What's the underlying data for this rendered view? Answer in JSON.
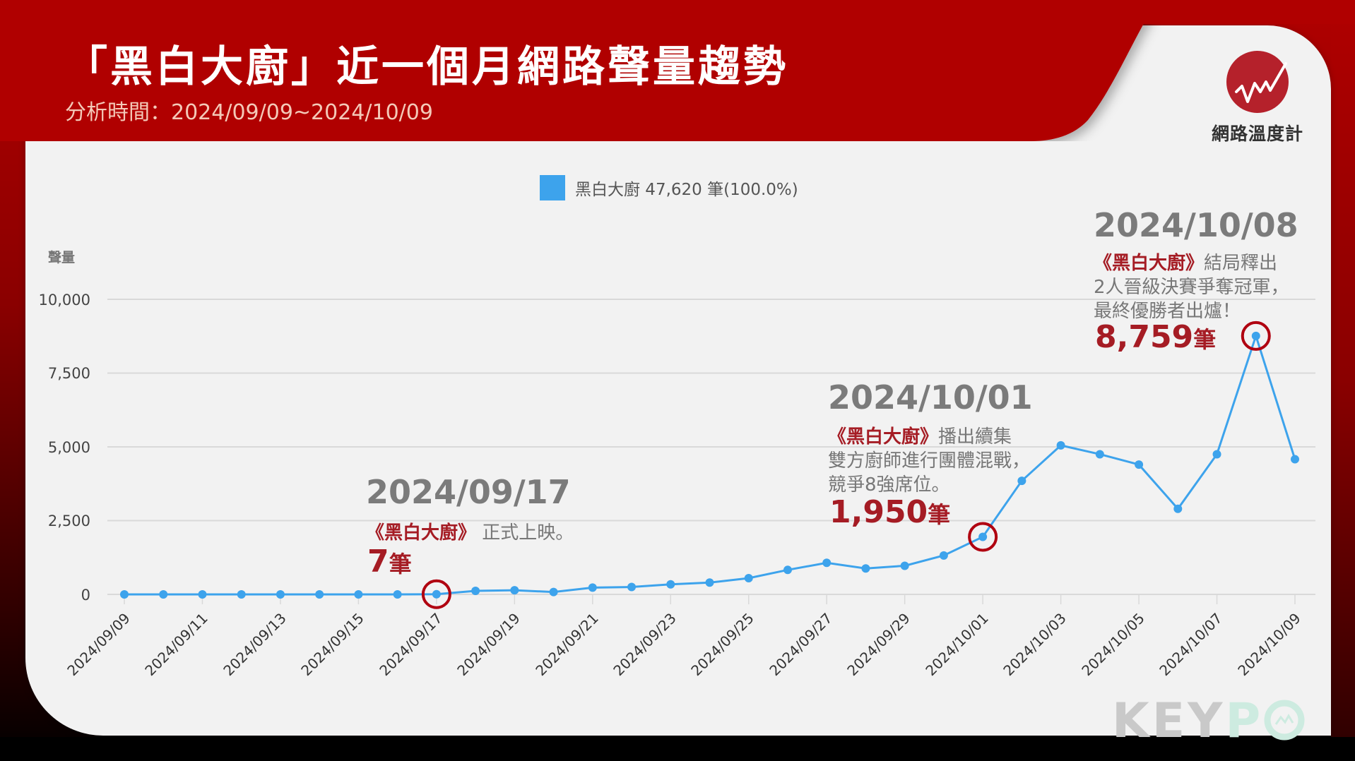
{
  "header": {
    "title": "「黑白大廚」近一個月網路聲量趨勢",
    "subtitle": "分析時間：2024/09/09~2024/10/09"
  },
  "brand": {
    "logo_icon": "trend-line-icon",
    "logo_text": "網路溫度計",
    "watermark_left": "KEY",
    "watermark_right": "P",
    "watermark_icon": "keypo-o-icon"
  },
  "legend": {
    "label": "黑白大廚 47,620 筆(100.0%)",
    "color": "#3da3ec"
  },
  "annotations": [
    {
      "date": "2024/09/17",
      "title": "《黑白大廚》",
      "lines": [
        "正式上映。"
      ],
      "count": "7",
      "unit": "筆"
    },
    {
      "date": "2024/10/01",
      "title": "《黑白大廚》",
      "lines": [
        "播出續集",
        "雙方廚師進行團體混戰，",
        "競爭8強席位。"
      ],
      "count": "1,950",
      "unit": "筆"
    },
    {
      "date": "2024/10/08",
      "title": "《黑白大廚》",
      "lines": [
        "結局釋出",
        "2人晉級決賽爭奪冠軍，",
        "最終優勝者出爐！"
      ],
      "count": "8,759",
      "unit": "筆"
    }
  ],
  "colors": {
    "header_red": "#b00000",
    "accent_red": "#a51c24",
    "line_blue": "#3da3ec",
    "highlight_circle": "#b00010"
  },
  "chart_data": {
    "type": "line",
    "title": "「黑白大廚」近一個月網路聲量趨勢",
    "subtitle": "分析時間：2024/09/09~2024/10/09",
    "xlabel": "",
    "ylabel": "聲量",
    "ylim": [
      0,
      10000
    ],
    "yticks": [
      0,
      2500,
      5000,
      7500,
      10000
    ],
    "ytick_labels": [
      "0",
      "2,500",
      "5,000",
      "7,500",
      "10,000"
    ],
    "grid": true,
    "legend_position": "top",
    "xtick_labels": [
      "2024/09/09",
      "2024/09/11",
      "2024/09/13",
      "2024/09/15",
      "2024/09/17",
      "2024/09/19",
      "2024/09/21",
      "2024/09/23",
      "2024/09/25",
      "2024/09/27",
      "2024/09/29",
      "2024/10/01",
      "2024/10/03",
      "2024/10/05",
      "2024/10/07",
      "2024/10/09"
    ],
    "x": [
      "2024/09/09",
      "2024/09/10",
      "2024/09/11",
      "2024/09/12",
      "2024/09/13",
      "2024/09/14",
      "2024/09/15",
      "2024/09/16",
      "2024/09/17",
      "2024/09/18",
      "2024/09/19",
      "2024/09/20",
      "2024/09/21",
      "2024/09/22",
      "2024/09/23",
      "2024/09/24",
      "2024/09/25",
      "2024/09/26",
      "2024/09/27",
      "2024/09/28",
      "2024/09/29",
      "2024/09/30",
      "2024/10/01",
      "2024/10/02",
      "2024/10/03",
      "2024/10/04",
      "2024/10/05",
      "2024/10/06",
      "2024/10/07",
      "2024/10/08",
      "2024/10/09"
    ],
    "series": [
      {
        "name": "黑白大廚",
        "total": "47,620 筆(100.0%)",
        "values": [
          0,
          0,
          0,
          0,
          0,
          0,
          0,
          0,
          7,
          120,
          140,
          80,
          230,
          250,
          340,
          400,
          550,
          830,
          1070,
          880,
          970,
          1320,
          1950,
          3850,
          5050,
          4750,
          4400,
          2900,
          4750,
          8759,
          4580
        ]
      }
    ],
    "highlighted_points": [
      {
        "x": "2024/09/17",
        "value": 7
      },
      {
        "x": "2024/10/01",
        "value": 1950
      },
      {
        "x": "2024/10/08",
        "value": 8759
      }
    ]
  }
}
